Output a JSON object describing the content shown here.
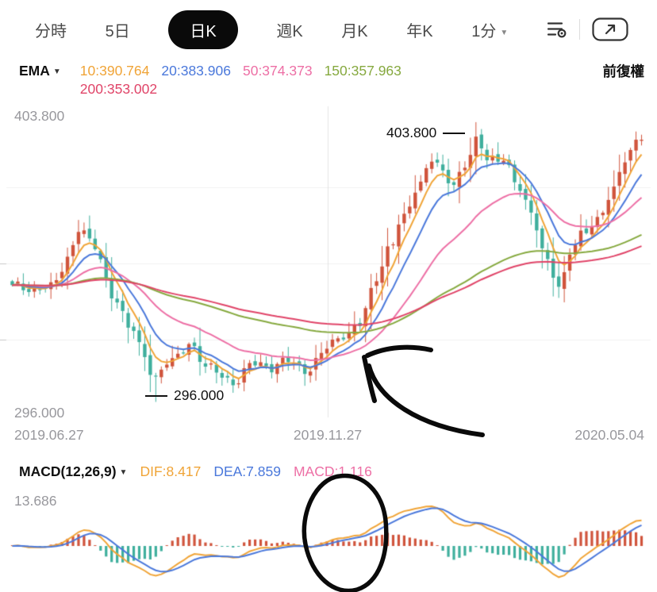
{
  "toolbar": {
    "tabs": [
      {
        "label": "分時"
      },
      {
        "label": "5日"
      },
      {
        "label": "日K",
        "active": true
      },
      {
        "label": "週K"
      },
      {
        "label": "月K"
      },
      {
        "label": "年K"
      },
      {
        "label": "1分",
        "dropdown": true
      }
    ]
  },
  "glyphs": {
    "caret_down": "▼"
  },
  "ema": {
    "label": "EMA",
    "values": [
      {
        "text": "10:390.764"
      },
      {
        "text": "20:383.906"
      },
      {
        "text": "50:374.373"
      },
      {
        "text": "150:357.963"
      },
      {
        "text": "200:353.002"
      }
    ],
    "adjust_label": "前復權"
  },
  "main_chart": {
    "y_max_label": "403.800",
    "y_min_label": "296.000",
    "x_labels": [
      "2019.06.27",
      "2019.11.27",
      "2020.05.04"
    ],
    "high_annotation": "403.800",
    "low_annotation": "296.000"
  },
  "macd": {
    "label": "MACD(12,26,9)",
    "dif_label": "DIF:8.417",
    "dea_label": "DEA:7.859",
    "macd_label": "MACD:1.116",
    "y_max_label": "13.686"
  },
  "colors": {
    "orange": "#F0A437",
    "blue": "#4A78DB",
    "pink": "#ED6FA5",
    "olive": "#86A93F",
    "crimson": "#E04468",
    "up": "#D0543C",
    "down": "#3FAF9D",
    "axis": "#98989D",
    "grid": "#F1F1F1",
    "grid_dark": "#E5E5E5",
    "tick": "#C9C9C9",
    "annotation": "#0A0A0A"
  },
  "chart_data": {
    "type": "candlestick",
    "panels": [
      "price+ema",
      "macd"
    ],
    "x_range": [
      "2019.06.27",
      "2020.05.04"
    ],
    "price_axis": {
      "max": 403.8,
      "min": 296.0
    },
    "candles_count": 115,
    "close_keypoints": [
      [
        0.0,
        341
      ],
      [
        0.03,
        337
      ],
      [
        0.06,
        342
      ],
      [
        0.09,
        352
      ],
      [
        0.105,
        362
      ],
      [
        0.13,
        355
      ],
      [
        0.16,
        338
      ],
      [
        0.19,
        325
      ],
      [
        0.21,
        312
      ],
      [
        0.225,
        303
      ],
      [
        0.25,
        313
      ],
      [
        0.28,
        319
      ],
      [
        0.31,
        308
      ],
      [
        0.35,
        304
      ],
      [
        0.38,
        312
      ],
      [
        0.41,
        307
      ],
      [
        0.44,
        313
      ],
      [
        0.47,
        309
      ],
      [
        0.5,
        316
      ],
      [
        0.53,
        321
      ],
      [
        0.55,
        328
      ],
      [
        0.58,
        344
      ],
      [
        0.6,
        354
      ],
      [
        0.62,
        366
      ],
      [
        0.645,
        380
      ],
      [
        0.665,
        391
      ],
      [
        0.685,
        384
      ],
      [
        0.7,
        377
      ],
      [
        0.72,
        387
      ],
      [
        0.74,
        399
      ],
      [
        0.755,
        391
      ],
      [
        0.78,
        389
      ],
      [
        0.8,
        379
      ],
      [
        0.825,
        369
      ],
      [
        0.85,
        352
      ],
      [
        0.87,
        340
      ],
      [
        0.89,
        354
      ],
      [
        0.91,
        361
      ],
      [
        0.93,
        367
      ],
      [
        0.95,
        377
      ],
      [
        0.975,
        389
      ],
      [
        1.0,
        397
      ]
    ],
    "pinned_low": {
      "t": 0.225,
      "price": 296.0
    },
    "pinned_high": {
      "t": 0.74,
      "price": 403.8
    },
    "ema": {
      "periods": [
        10,
        20,
        50,
        150,
        200
      ],
      "latest": [
        390.764,
        383.906,
        374.373,
        357.963,
        353.002
      ]
    },
    "macd": {
      "fast": 12,
      "slow": 26,
      "signal": 9,
      "dif": 8.417,
      "dea": 7.859,
      "macd": 1.116,
      "panel_max": 13.686
    }
  }
}
